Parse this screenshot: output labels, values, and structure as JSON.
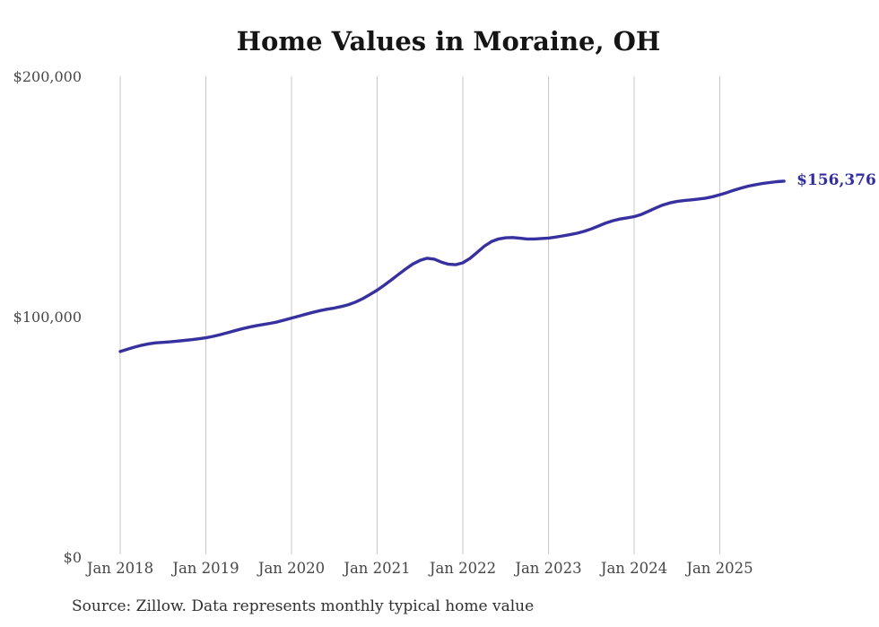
{
  "title": "Home Values in Moraine, OH",
  "source_note": "Source: Zillow. Data represents monthly typical home value",
  "last_value_label": "$156,376",
  "colors": {
    "line": "#37309f",
    "last_value_label": "#332e9e",
    "gridline": "#c9c9c9",
    "axis_text": "#474747",
    "title_text": "#151515",
    "source_text": "#303030",
    "background": "#ffffff"
  },
  "chart_data": {
    "type": "line",
    "title": "Home Values in Moraine, OH",
    "xlabel": "",
    "ylabel": "",
    "ylim": [
      0,
      200000
    ],
    "grid": "vertical-only",
    "legend": "none",
    "frequency": "monthly",
    "start_month": "2018-01",
    "end_month": "2025-10",
    "y_ticks": [
      {
        "label": "$200,000",
        "value": 200000
      },
      {
        "label": "$100,000",
        "value": 100000
      },
      {
        "label": "$0",
        "value": 0
      }
    ],
    "x_ticks": [
      {
        "label": "Jan 2018",
        "month_index": 0
      },
      {
        "label": "Jan 2019",
        "month_index": 12
      },
      {
        "label": "Jan 2020",
        "month_index": 24
      },
      {
        "label": "Jan 2021",
        "month_index": 36
      },
      {
        "label": "Jan 2022",
        "month_index": 48
      },
      {
        "label": "Jan 2023",
        "month_index": 60
      },
      {
        "label": "Jan 2024",
        "month_index": 72
      },
      {
        "label": "Jan 2025",
        "month_index": 84
      }
    ],
    "series": [
      {
        "name": "Typical home value",
        "values": [
          85500,
          86400,
          87300,
          88100,
          88700,
          89100,
          89300,
          89500,
          89800,
          90100,
          90400,
          90800,
          91200,
          91800,
          92500,
          93300,
          94100,
          94900,
          95600,
          96200,
          96700,
          97200,
          97800,
          98600,
          99400,
          100200,
          101000,
          101800,
          102500,
          103100,
          103600,
          104200,
          105000,
          106100,
          107500,
          109200,
          111000,
          113100,
          115300,
          117600,
          119800,
          121900,
          123400,
          124300,
          123900,
          122700,
          121800,
          121600,
          122400,
          124200,
          126700,
          129300,
          131200,
          132300,
          132800,
          132900,
          132600,
          132300,
          132300,
          132500,
          132700,
          133100,
          133600,
          134100,
          134700,
          135500,
          136500,
          137700,
          138900,
          139900,
          140600,
          141100,
          141600,
          142500,
          143800,
          145200,
          146400,
          147300,
          147900,
          148300,
          148600,
          148900,
          149300,
          149900,
          150700,
          151600,
          152600,
          153500,
          154300,
          154900,
          155400,
          155800,
          156150,
          156376
        ]
      }
    ],
    "last_value": 156376,
    "last_value_label": "$156,376"
  }
}
